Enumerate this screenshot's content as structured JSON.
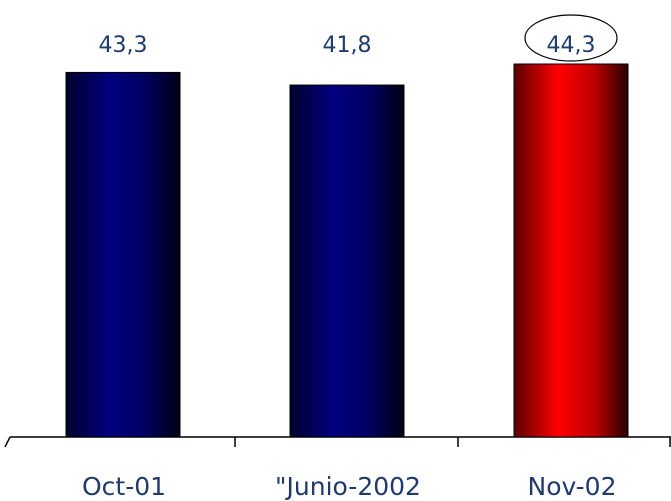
{
  "chart_data": {
    "type": "bar",
    "categories": [
      "Oct-01",
      "\"Junio-2002",
      "Nov-02"
    ],
    "values": [
      43.3,
      41.8,
      44.3
    ],
    "value_labels": [
      "43,3",
      "41,8",
      "44,3"
    ],
    "colors": [
      "#000080",
      "#000080",
      "#ff0000"
    ]
  }
}
